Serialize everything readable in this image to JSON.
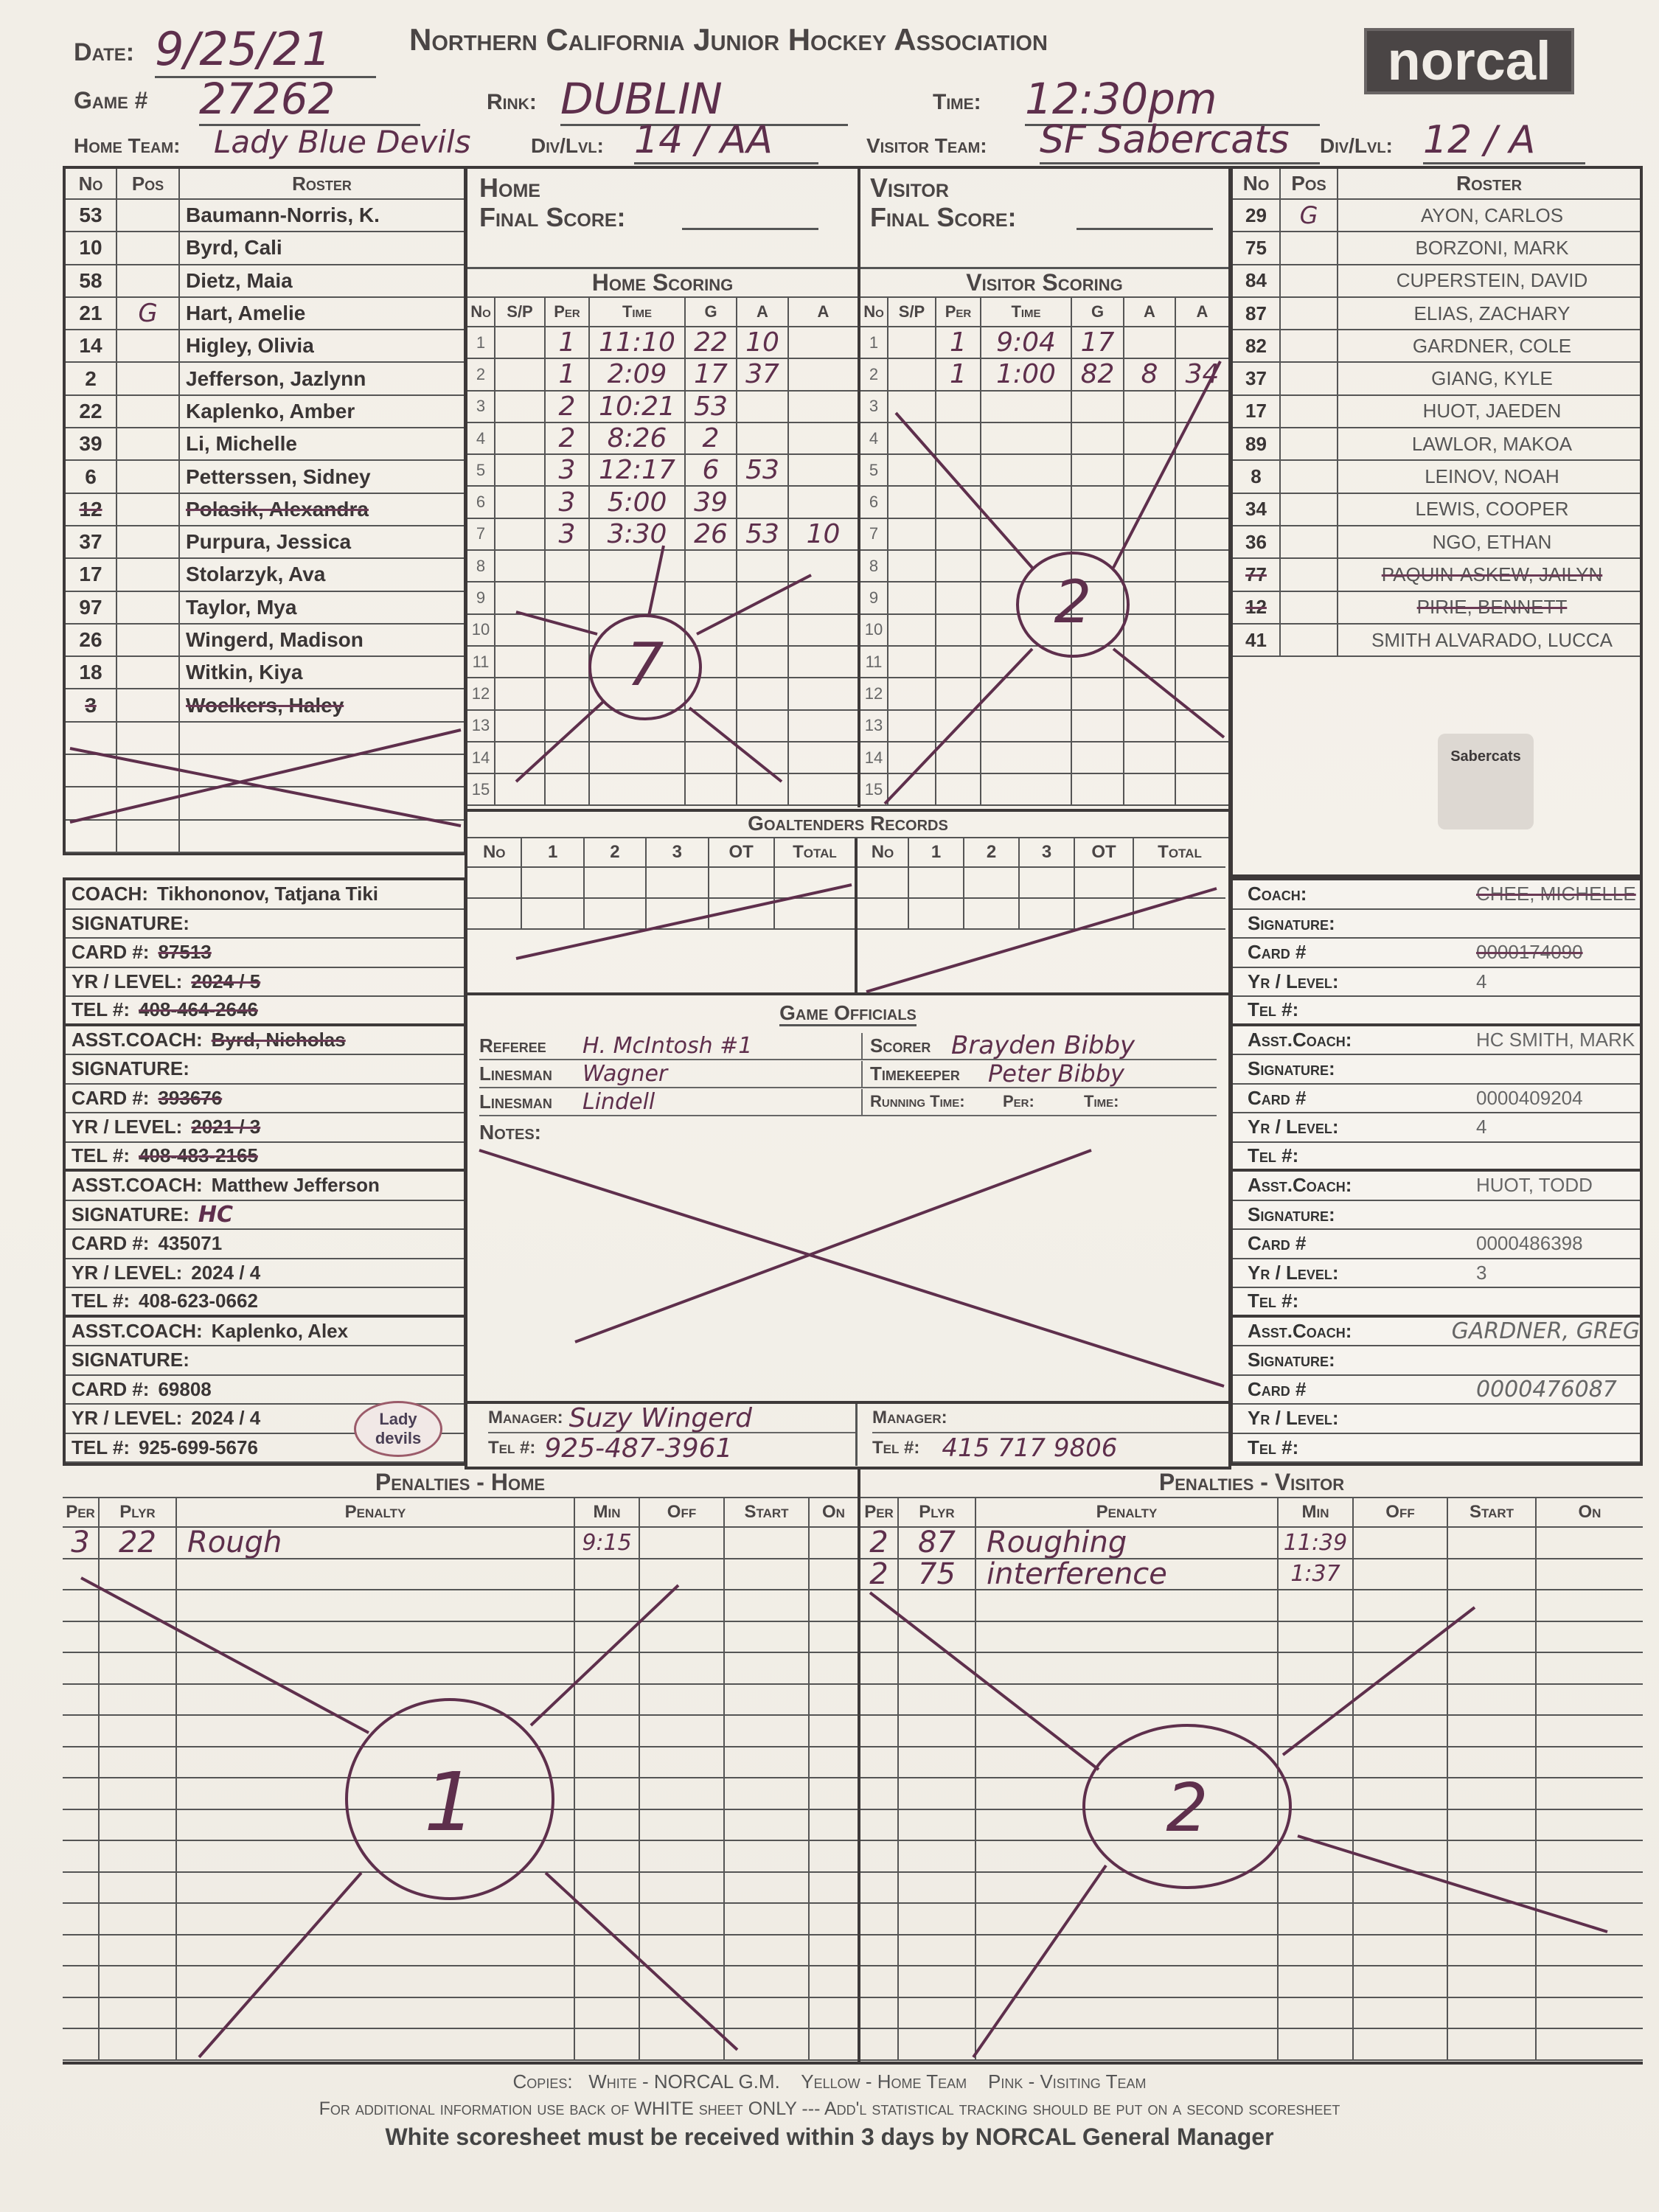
{
  "header": {
    "title": "Northern California Junior Hockey Association",
    "logo_text": "norcal",
    "date_label": "Date:",
    "date": "9/25/21",
    "game_label": "Game #",
    "game": "27262",
    "rink_label": "Rink:",
    "rink": "DUBLIN",
    "time_label": "Time:",
    "time": "12:30pm",
    "home_team_label": "Home Team:",
    "home_team": "Lady Blue Devils",
    "home_div_label": "Div/Lvl:",
    "home_div": "14 / AA",
    "visitor_team_label": "Visitor Team:",
    "visitor_team": "SF Sabercats",
    "visitor_div_label": "Div/Lvl:",
    "visitor_div": "12 / A"
  },
  "roster_headers": {
    "no": "No",
    "pos": "Pos",
    "roster": "Roster"
  },
  "home_roster": [
    {
      "no": "53",
      "pos": "",
      "name": "Baumann-Norris, K."
    },
    {
      "no": "10",
      "pos": "",
      "name": "Byrd, Cali"
    },
    {
      "no": "58",
      "pos": "",
      "name": "Dietz, Maia"
    },
    {
      "no": "21",
      "pos": "G",
      "name": "Hart, Amelie"
    },
    {
      "no": "14",
      "pos": "",
      "name": "Higley, Olivia"
    },
    {
      "no": "2",
      "pos": "",
      "name": "Jefferson, Jazlynn"
    },
    {
      "no": "22",
      "pos": "",
      "name": "Kaplenko, Amber"
    },
    {
      "no": "39",
      "pos": "",
      "name": "Li, Michelle"
    },
    {
      "no": "6",
      "pos": "",
      "name": "Petterssen, Sidney"
    },
    {
      "no": "12",
      "pos": "",
      "name": "Polasik, Alexandra",
      "struck": true
    },
    {
      "no": "37",
      "pos": "",
      "name": "Purpura, Jessica"
    },
    {
      "no": "17",
      "pos": "",
      "name": "Stolarzyk, Ava"
    },
    {
      "no": "97",
      "pos": "",
      "name": "Taylor, Mya"
    },
    {
      "no": "26",
      "pos": "",
      "name": "Wingerd, Madison"
    },
    {
      "no": "18",
      "pos": "",
      "name": "Witkin, Kiya"
    },
    {
      "no": "3",
      "pos": "",
      "name": "Woelkers, Haley",
      "struck": true
    }
  ],
  "visitor_roster": [
    {
      "no": "29",
      "pos": "G",
      "name": "AYON, CARLOS"
    },
    {
      "no": "75",
      "pos": "",
      "name": "BORZONI, MARK"
    },
    {
      "no": "84",
      "pos": "",
      "name": "CUPERSTEIN, DAVID"
    },
    {
      "no": "87",
      "pos": "",
      "name": "ELIAS, ZACHARY"
    },
    {
      "no": "82",
      "pos": "",
      "name": "GARDNER, COLE"
    },
    {
      "no": "37",
      "pos": "",
      "name": "GIANG, KYLE"
    },
    {
      "no": "17",
      "pos": "",
      "name": "HUOT, JAEDEN"
    },
    {
      "no": "89",
      "pos": "",
      "name": "LAWLOR, MAKOA"
    },
    {
      "no": "8",
      "pos": "",
      "name": "LEINOV, NOAH"
    },
    {
      "no": "34",
      "pos": "",
      "name": "LEWIS, COOPER"
    },
    {
      "no": "36",
      "pos": "",
      "name": "NGO, ETHAN"
    },
    {
      "no": "77",
      "pos": "",
      "name": "PAQUIN-ASKEW, JAILYN",
      "struck": true
    },
    {
      "no": "12",
      "pos": "",
      "name": "PIRIE, BENNETT",
      "struck": true
    },
    {
      "no": "41",
      "pos": "",
      "name": "SMITH ALVARADO, LUCCA"
    }
  ],
  "final_score": {
    "home_label": "Home",
    "visitor_label": "Visitor",
    "label": "Final Score:",
    "home": "7",
    "visitor": "2"
  },
  "scoring": {
    "home_title": "Home Scoring",
    "visitor_title": "Visitor Scoring",
    "columns": {
      "no": "No",
      "sp": "S/P",
      "per": "Per",
      "time": "Time",
      "g": "G",
      "a1": "A",
      "a2": "A"
    },
    "home": [
      {
        "no": "1",
        "sp": "",
        "per": "1",
        "time": "11:10",
        "g": "22",
        "a1": "10",
        "a2": ""
      },
      {
        "no": "2",
        "sp": "",
        "per": "1",
        "time": "2:09",
        "g": "17",
        "a1": "37",
        "a2": ""
      },
      {
        "no": "3",
        "sp": "",
        "per": "2",
        "time": "10:21",
        "g": "53",
        "a1": "",
        "a2": ""
      },
      {
        "no": "4",
        "sp": "",
        "per": "2",
        "time": "8:26",
        "g": "2",
        "a1": "",
        "a2": ""
      },
      {
        "no": "5",
        "sp": "",
        "per": "3",
        "time": "12:17",
        "g": "6",
        "a1": "53",
        "a2": ""
      },
      {
        "no": "6",
        "sp": "",
        "per": "3",
        "time": "5:00",
        "g": "39",
        "a1": "",
        "a2": ""
      },
      {
        "no": "7",
        "sp": "",
        "per": "3",
        "time": "3:30",
        "g": "26",
        "a1": "53",
        "a2": "10"
      },
      {
        "no": "8"
      },
      {
        "no": "9"
      },
      {
        "no": "10"
      },
      {
        "no": "11"
      },
      {
        "no": "12"
      },
      {
        "no": "13"
      },
      {
        "no": "14"
      },
      {
        "no": "15"
      }
    ],
    "visitor": [
      {
        "no": "1",
        "sp": "",
        "per": "1",
        "time": "9:04",
        "g": "17",
        "a1": "",
        "a2": ""
      },
      {
        "no": "2",
        "sp": "",
        "per": "1",
        "time": "1:00",
        "g": "82",
        "a1": "8",
        "a2": "34"
      },
      {
        "no": "3"
      },
      {
        "no": "4"
      },
      {
        "no": "5"
      },
      {
        "no": "6"
      },
      {
        "no": "7"
      },
      {
        "no": "8"
      },
      {
        "no": "9"
      },
      {
        "no": "10"
      },
      {
        "no": "11"
      },
      {
        "no": "12"
      },
      {
        "no": "13"
      },
      {
        "no": "14"
      },
      {
        "no": "15"
      }
    ]
  },
  "goaltenders": {
    "title": "Goaltenders Records",
    "columns": [
      "No",
      "1",
      "2",
      "3",
      "OT",
      "Total"
    ]
  },
  "officials": {
    "title": "Game Officials",
    "referee_label": "Referee",
    "referee": "H. McIntosh #1",
    "linesman1_label": "Linesman",
    "linesman1": "Wagner",
    "linesman2_label": "Linesman",
    "linesman2": "Lindell",
    "scorer_label": "Scorer",
    "scorer": "Brayden Bibby",
    "timekeeper_label": "Timekeeper",
    "timekeeper": "Peter Bibby",
    "running_time_label": "Running Time:",
    "per_label": "Per:",
    "time_label": "Time:",
    "notes_label": "Notes:"
  },
  "managers": {
    "manager_label": "Manager:",
    "tel_label": "Tel #:",
    "home_manager": "Suzy Wingerd",
    "home_tel": "925-487-3961",
    "visitor_manager": "",
    "visitor_tel": "415 717 9806"
  },
  "home_staff": [
    {
      "rows": [
        {
          "k": "COACH:",
          "v": "Tikhononov, Tatjana Tiki"
        },
        {
          "k": "SIGNATURE:",
          "v": ""
        },
        {
          "k": "CARD #:",
          "v": "87513",
          "struck": true
        },
        {
          "k": "YR / LEVEL:",
          "v": "2024 / 5",
          "struck": true
        },
        {
          "k": "TEL #:",
          "v": "408-464-2646",
          "struck": true
        }
      ]
    },
    {
      "rows": [
        {
          "k": "ASST.COACH:",
          "v": "Byrd, Nicholas",
          "struck": true
        },
        {
          "k": "SIGNATURE:",
          "v": ""
        },
        {
          "k": "CARD #:",
          "v": "393676",
          "struck": true
        },
        {
          "k": "YR / LEVEL:",
          "v": "2021 / 3",
          "struck": true
        },
        {
          "k": "TEL #:",
          "v": "408-483-2165",
          "struck": true
        }
      ]
    },
    {
      "rows": [
        {
          "k": "ASST.COACH:",
          "v": "Matthew Jefferson"
        },
        {
          "k": "SIGNATURE:",
          "v": "HC",
          "hand": true
        },
        {
          "k": "CARD #:",
          "v": "435071"
        },
        {
          "k": "YR / LEVEL:",
          "v": "2024 / 4"
        },
        {
          "k": "TEL #:",
          "v": "408-623-0662"
        }
      ]
    },
    {
      "rows": [
        {
          "k": "ASST.COACH:",
          "v": "Kaplenko, Alex"
        },
        {
          "k": "SIGNATURE:",
          "v": ""
        },
        {
          "k": "CARD #:",
          "v": "69808"
        },
        {
          "k": "YR / LEVEL:",
          "v": "2024 / 4"
        },
        {
          "k": "TEL #:",
          "v": "925-699-5676"
        }
      ]
    }
  ],
  "visitor_staff": [
    {
      "rows": [
        {
          "k": "Coach:",
          "v": "CHEE, MICHELLE",
          "struck": true
        },
        {
          "k": "Signature:",
          "v": ""
        },
        {
          "k": "Card #",
          "v": "0000174090",
          "struck": true
        },
        {
          "k": "Yr / Level:",
          "v": "4"
        },
        {
          "k": "Tel #:",
          "v": ""
        }
      ]
    },
    {
      "rows": [
        {
          "k": "Asst.Coach:",
          "v": "HC SMITH, MARK"
        },
        {
          "k": "Signature:",
          "v": ""
        },
        {
          "k": "Card #",
          "v": "0000409204"
        },
        {
          "k": "Yr / Level:",
          "v": "4"
        },
        {
          "k": "Tel #:",
          "v": ""
        }
      ]
    },
    {
      "rows": [
        {
          "k": "Asst.Coach:",
          "v": "HUOT, TODD"
        },
        {
          "k": "Signature:",
          "v": ""
        },
        {
          "k": "Card #",
          "v": "0000486398"
        },
        {
          "k": "Yr / Level:",
          "v": "3"
        },
        {
          "k": "Tel #:",
          "v": ""
        }
      ]
    },
    {
      "rows": [
        {
          "k": "Asst.Coach:",
          "v": "GARDNER, GREG",
          "hand": true
        },
        {
          "k": "Signature:",
          "v": ""
        },
        {
          "k": "Card #",
          "v": "0000476087",
          "hand": true
        },
        {
          "k": "Yr / Level:",
          "v": ""
        },
        {
          "k": "Tel #:",
          "v": ""
        }
      ]
    }
  ],
  "penalties": {
    "home_title": "Penalties - Home",
    "visitor_title": "Penalties - Visitor",
    "columns": {
      "per": "Per",
      "plyr": "Plyr",
      "penalty": "Penalty",
      "min": "Min",
      "off": "Off",
      "start": "Start",
      "on": "On"
    },
    "home": [
      {
        "per": "3",
        "plyr": "22",
        "penalty": "Rough",
        "min": "9:15",
        "off": "",
        "start": "",
        "on": ""
      }
    ],
    "visitor": [
      {
        "per": "2",
        "plyr": "87",
        "penalty": "Roughing",
        "min": "11:39",
        "off": "",
        "start": "",
        "on": ""
      },
      {
        "per": "2",
        "plyr": "75",
        "penalty": "interference",
        "min": "1:37",
        "off": "",
        "start": "",
        "on": ""
      }
    ],
    "home_total_circled": "1",
    "visitor_total_circled": "2"
  },
  "team_logos": {
    "home": "Lady devils",
    "visitor": "Sabercats"
  },
  "footer": {
    "copies": "Copies:   White - NORCAL G.M.    Yellow - Home Team    Pink - Visiting Team",
    "additional": "For additional information use back of WHITE sheet ONLY  ---  Add'l statistical tracking should be put on a second scoresheet",
    "deadline": "White scoresheet must be received within 3 days by NORCAL General Manager"
  },
  "colors": {
    "ink": "#5e2f4c",
    "print": "#3d3939",
    "paper": "#f2eee7"
  }
}
